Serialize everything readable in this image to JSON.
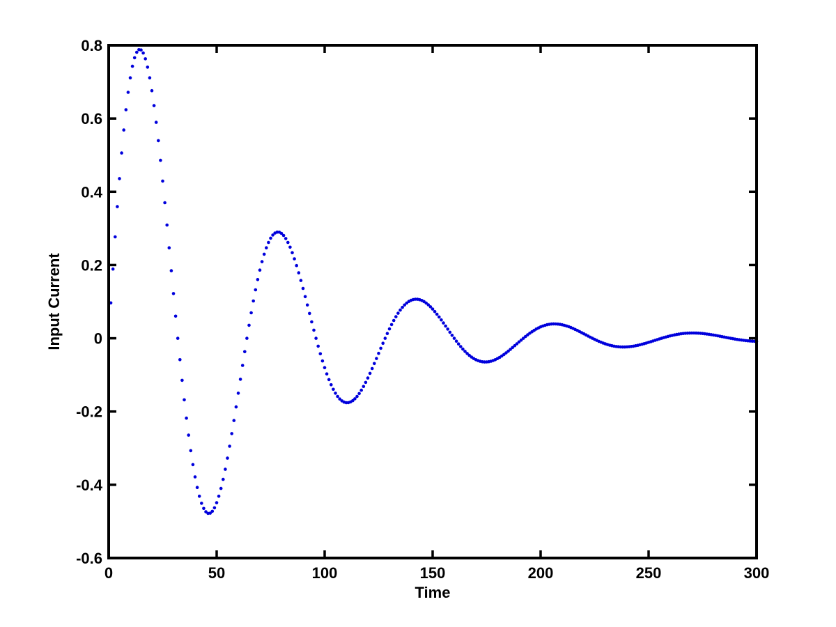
{
  "figure": {
    "background": "#ffffff",
    "axis_color": "#000000",
    "title": ""
  },
  "chart_data": {
    "type": "scatter",
    "title": "",
    "xlabel": "Time",
    "ylabel": "Input Current",
    "xlim": [
      0,
      300
    ],
    "ylim": [
      -0.6,
      0.8
    ],
    "grid": false,
    "legend": "none",
    "box": true,
    "tick_direction": "in",
    "x_ticks": [
      0,
      50,
      100,
      150,
      200,
      250,
      300
    ],
    "x_tick_labels": [
      "0",
      "50",
      "100",
      "150",
      "200",
      "250",
      "300"
    ],
    "y_ticks": [
      -0.6,
      -0.4,
      -0.2,
      0,
      0.2,
      0.4,
      0.6,
      0.8
    ],
    "y_tick_labels": [
      "-0.6",
      "-0.4",
      "-0.2",
      "0",
      "0.2",
      "0.4",
      "0.6",
      "0.8"
    ],
    "marker": {
      "shape": "dot",
      "color": "#0000DC",
      "radius_px": 2.3
    },
    "series": [
      {
        "name": "input-current",
        "model": "damped_sine",
        "formula": "y(t) = amplitude * exp(-t/tau) * sin(2*pi*t/period + phase)",
        "amplitude": 1,
        "tau": 64,
        "period": 64,
        "phase": 0,
        "t_start": 1,
        "t_end": 300,
        "t_step": 1,
        "key_points": [
          {
            "t": 1,
            "y": 0.097
          },
          {
            "t": 14.4,
            "y": 0.79
          },
          {
            "t": 46.4,
            "y": -0.48
          },
          {
            "t": 78.4,
            "y": 0.29
          },
          {
            "t": 110.4,
            "y": -0.175
          },
          {
            "t": 142.4,
            "y": 0.105
          },
          {
            "t": 174.4,
            "y": -0.064
          },
          {
            "t": 206.4,
            "y": 0.039
          },
          {
            "t": 238.4,
            "y": -0.023
          },
          {
            "t": 270.4,
            "y": 0.014
          },
          {
            "t": 300,
            "y": -0.008
          }
        ]
      }
    ]
  }
}
